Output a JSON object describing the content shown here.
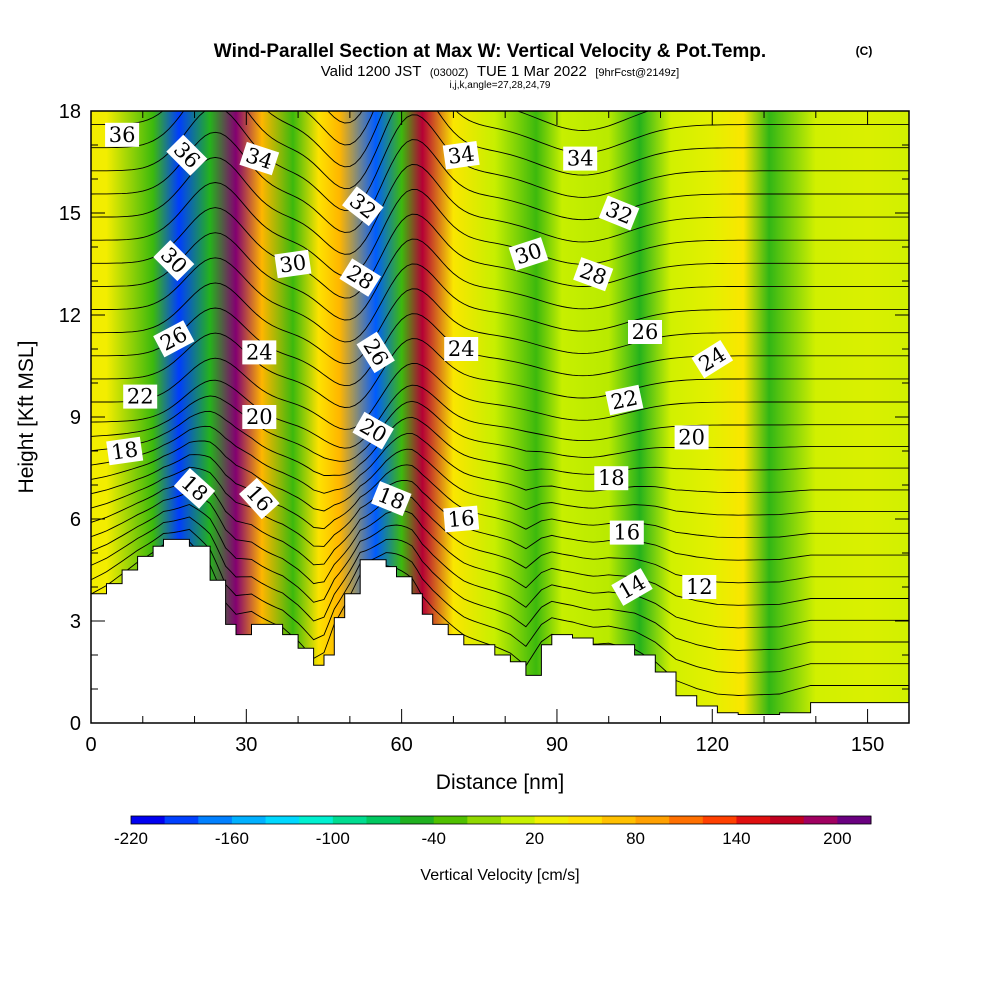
{
  "chart_data": {
    "type": "heatmap",
    "title": "Wind-Parallel Section at Max W: Vertical Velocity & Pot.Temp.",
    "title_units": "(C)",
    "subtitle_valid": "Valid 1200 JST",
    "subtitle_utc": "(0300Z)",
    "subtitle_date": "TUE 1 Mar 2022",
    "subtitle_fcst": "[9hrFcst@2149z]",
    "subtitle_indices": "i,j,k,angle=27,28,24,79",
    "xlabel": "Distance [nm]",
    "ylabel": "Height [Kft MSL]",
    "xlim": [
      0,
      158
    ],
    "ylim": [
      0,
      18
    ],
    "x_ticks": [
      0,
      30,
      60,
      90,
      120,
      150
    ],
    "y_ticks": [
      0,
      3,
      6,
      9,
      12,
      15,
      18
    ],
    "fill_variable": "Vertical Velocity",
    "colorbar": {
      "label": "Vertical Velocity [cm/s]",
      "ticks": [
        -220,
        -160,
        -100,
        -40,
        20,
        80,
        140,
        200
      ],
      "range": [
        -220,
        220
      ],
      "colors": [
        "#0000f0",
        "#0040ff",
        "#0080ff",
        "#00b0ff",
        "#00d8ff",
        "#00f0d0",
        "#00dc90",
        "#00c860",
        "#20b020",
        "#50c000",
        "#90d800",
        "#c8f000",
        "#f0f000",
        "#ffe000",
        "#ffc000",
        "#ffa000",
        "#ff7000",
        "#ff4000",
        "#e01010",
        "#c00020",
        "#a00060",
        "#6a0080"
      ]
    },
    "vertical_velocity_bands": [
      {
        "x": 3,
        "w": 35
      },
      {
        "x": 12,
        "w": -40
      },
      {
        "x": 17,
        "w": -200
      },
      {
        "x": 23,
        "w": -50
      },
      {
        "x": 28,
        "w": 210
      },
      {
        "x": 33,
        "w": 80
      },
      {
        "x": 39,
        "w": -40
      },
      {
        "x": 44,
        "w": 50
      },
      {
        "x": 48,
        "w": 80
      },
      {
        "x": 55,
        "w": -190
      },
      {
        "x": 60,
        "w": -40
      },
      {
        "x": 64,
        "w": 185
      },
      {
        "x": 70,
        "w": 45
      },
      {
        "x": 78,
        "w": 10
      },
      {
        "x": 86,
        "w": -40
      },
      {
        "x": 91,
        "w": 10
      },
      {
        "x": 100,
        "w": 5
      },
      {
        "x": 106,
        "w": -50
      },
      {
        "x": 112,
        "w": 15
      },
      {
        "x": 120,
        "w": 25
      },
      {
        "x": 126,
        "w": 45
      },
      {
        "x": 131,
        "w": -45
      },
      {
        "x": 140,
        "w": 15
      },
      {
        "x": 150,
        "w": 20
      },
      {
        "x": 158,
        "w": 15
      }
    ],
    "terrain": [
      {
        "x": 0,
        "h": 3.8
      },
      {
        "x": 3,
        "h": 4.1
      },
      {
        "x": 6,
        "h": 4.5
      },
      {
        "x": 9,
        "h": 4.9
      },
      {
        "x": 12,
        "h": 5.2
      },
      {
        "x": 14,
        "h": 5.4
      },
      {
        "x": 19,
        "h": 5.2
      },
      {
        "x": 23,
        "h": 4.2
      },
      {
        "x": 26,
        "h": 2.9
      },
      {
        "x": 28,
        "h": 2.6
      },
      {
        "x": 31,
        "h": 2.9
      },
      {
        "x": 37,
        "h": 2.6
      },
      {
        "x": 40,
        "h": 2.2
      },
      {
        "x": 43,
        "h": 1.7
      },
      {
        "x": 45,
        "h": 2.0
      },
      {
        "x": 47,
        "h": 3.1
      },
      {
        "x": 49,
        "h": 3.8
      },
      {
        "x": 52,
        "h": 4.8
      },
      {
        "x": 57,
        "h": 4.6
      },
      {
        "x": 59,
        "h": 4.3
      },
      {
        "x": 62,
        "h": 3.8
      },
      {
        "x": 64,
        "h": 3.2
      },
      {
        "x": 66,
        "h": 2.9
      },
      {
        "x": 69,
        "h": 2.6
      },
      {
        "x": 72,
        "h": 2.3
      },
      {
        "x": 78,
        "h": 2.0
      },
      {
        "x": 81,
        "h": 1.8
      },
      {
        "x": 84,
        "h": 1.4
      },
      {
        "x": 87,
        "h": 2.3
      },
      {
        "x": 89,
        "h": 2.6
      },
      {
        "x": 93,
        "h": 2.5
      },
      {
        "x": 97,
        "h": 2.3
      },
      {
        "x": 100,
        "h": 2.3
      },
      {
        "x": 105,
        "h": 2.0
      },
      {
        "x": 109,
        "h": 1.5
      },
      {
        "x": 113,
        "h": 0.8
      },
      {
        "x": 117,
        "h": 0.5
      },
      {
        "x": 121,
        "h": 0.3
      },
      {
        "x": 125,
        "h": 0.25
      },
      {
        "x": 133,
        "h": 0.3
      },
      {
        "x": 139,
        "h": 0.6
      },
      {
        "x": 148,
        "h": 0.6
      },
      {
        "x": 158,
        "h": 0.6
      }
    ],
    "theta_contours": {
      "levels": [
        10,
        11,
        12,
        13,
        14,
        15,
        16,
        17,
        18,
        19,
        20,
        21,
        22,
        23,
        24,
        25,
        26,
        27,
        28,
        29,
        30,
        31,
        32,
        33,
        34,
        35,
        36,
        37
      ],
      "labels": [
        {
          "text": "36",
          "x": 6,
          "y": 17.3,
          "angle": 0
        },
        {
          "text": "36",
          "x": 18.5,
          "y": 16.7,
          "angle": 45
        },
        {
          "text": "34",
          "x": 32.5,
          "y": 16.6,
          "angle": 18
        },
        {
          "text": "34",
          "x": 71.5,
          "y": 16.7,
          "angle": -8
        },
        {
          "text": "34",
          "x": 94.5,
          "y": 16.6,
          "angle": 0
        },
        {
          "text": "32",
          "x": 52.5,
          "y": 15.2,
          "angle": 38
        },
        {
          "text": "32",
          "x": 102,
          "y": 15.0,
          "angle": 22
        },
        {
          "text": "30",
          "x": 16,
          "y": 13.6,
          "angle": 45
        },
        {
          "text": "30",
          "x": 39,
          "y": 13.5,
          "angle": -8
        },
        {
          "text": "30",
          "x": 84.5,
          "y": 13.8,
          "angle": -18
        },
        {
          "text": "28",
          "x": 52,
          "y": 13.1,
          "angle": 32
        },
        {
          "text": "28",
          "x": 97,
          "y": 13.2,
          "angle": 20
        },
        {
          "text": "26",
          "x": 16,
          "y": 11.3,
          "angle": -28
        },
        {
          "text": "26",
          "x": 55,
          "y": 10.9,
          "angle": 58
        },
        {
          "text": "26",
          "x": 107,
          "y": 11.5,
          "angle": 0
        },
        {
          "text": "24",
          "x": 32.5,
          "y": 10.9,
          "angle": 0
        },
        {
          "text": "24",
          "x": 71.5,
          "y": 11.0,
          "angle": 0
        },
        {
          "text": "24",
          "x": 120,
          "y": 10.7,
          "angle": -32
        },
        {
          "text": "22",
          "x": 9.5,
          "y": 9.6,
          "angle": 0
        },
        {
          "text": "22",
          "x": 103,
          "y": 9.5,
          "angle": -12
        },
        {
          "text": "20",
          "x": 32.5,
          "y": 9.0,
          "angle": 0
        },
        {
          "text": "20",
          "x": 54.5,
          "y": 8.6,
          "angle": 30
        },
        {
          "text": "20",
          "x": 116,
          "y": 8.4,
          "angle": 0
        },
        {
          "text": "18",
          "x": 6.5,
          "y": 8.0,
          "angle": -8
        },
        {
          "text": "18",
          "x": 20,
          "y": 6.9,
          "angle": 42
        },
        {
          "text": "18",
          "x": 58,
          "y": 6.6,
          "angle": 22
        },
        {
          "text": "18",
          "x": 100.5,
          "y": 7.2,
          "angle": 0
        },
        {
          "text": "16",
          "x": 32.5,
          "y": 6.6,
          "angle": 48
        },
        {
          "text": "16",
          "x": 71.5,
          "y": 6.0,
          "angle": -5
        },
        {
          "text": "16",
          "x": 103.5,
          "y": 5.6,
          "angle": 0
        },
        {
          "text": "14",
          "x": 104.5,
          "y": 4.0,
          "angle": -30
        },
        {
          "text": "12",
          "x": 117.5,
          "y": 4.0,
          "angle": 0
        }
      ]
    }
  }
}
